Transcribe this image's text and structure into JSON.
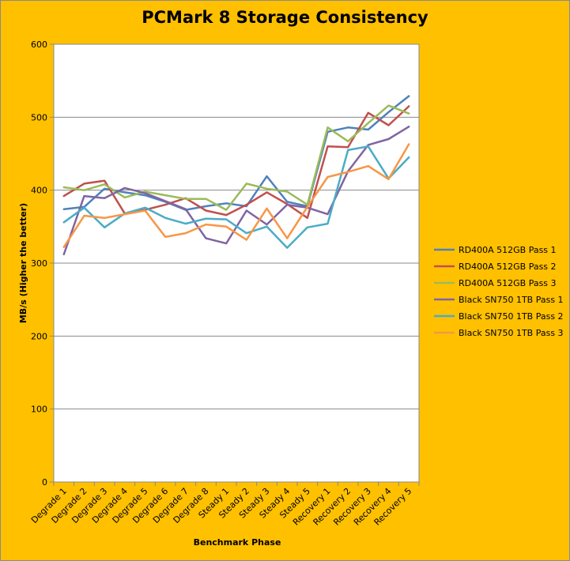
{
  "chart_data": {
    "type": "line",
    "title": "PCMark 8 Storage Consistency",
    "xlabel": "Benchmark Phase",
    "ylabel": "MB/s (Higher the better)",
    "ylim": [
      0,
      600
    ],
    "yticks": [
      0,
      100,
      200,
      300,
      400,
      500,
      600
    ],
    "grid": true,
    "legend_position": "right",
    "categories": [
      "Degrade 1",
      "Degrade 2",
      "Degrade 3",
      "Degrade 4",
      "Degrade 5",
      "Degrade 6",
      "Degrade 7",
      "Degrade 8",
      "Steady 1",
      "Steady 2",
      "Steady 3",
      "Steady 4",
      "Steady 5",
      "Recovery 1",
      "Recovery 2",
      "Recovery 3",
      "Recovery 4",
      "Recovery 5"
    ],
    "series": [
      {
        "name": "RD400A 512GB Pass 1",
        "color": "#4F81BD",
        "values": [
          374,
          377,
          402,
          397,
          393,
          384,
          373,
          378,
          382,
          378,
          419,
          384,
          378,
          480,
          486,
          483,
          507,
          529
        ]
      },
      {
        "name": "RD400A 512GB Pass 2",
        "color": "#C0504D",
        "values": [
          392,
          409,
          413,
          368,
          373,
          380,
          389,
          372,
          366,
          380,
          397,
          381,
          362,
          460,
          459,
          506,
          489,
          515
        ]
      },
      {
        "name": "RD400A 512GB Pass 3",
        "color": "#9BBB59",
        "values": [
          404,
          400,
          408,
          390,
          398,
          393,
          388,
          388,
          373,
          409,
          402,
          398,
          380,
          486,
          467,
          492,
          516,
          505
        ]
      },
      {
        "name": "Black SN750 1TB Pass 1",
        "color": "#8064A2",
        "values": [
          312,
          392,
          389,
          403,
          396,
          385,
          374,
          334,
          327,
          372,
          353,
          380,
          376,
          367,
          426,
          462,
          470,
          487
        ]
      },
      {
        "name": "Black SN750 1TB Pass 2",
        "color": "#4BACC6",
        "values": [
          356,
          376,
          349,
          368,
          376,
          362,
          354,
          361,
          360,
          341,
          350,
          321,
          349,
          354,
          455,
          460,
          416,
          445
        ]
      },
      {
        "name": "Black SN750 1TB Pass 3",
        "color": "#F79646",
        "values": [
          322,
          365,
          362,
          367,
          372,
          336,
          341,
          353,
          350,
          332,
          375,
          334,
          377,
          418,
          425,
          433,
          415,
          463
        ]
      }
    ]
  }
}
